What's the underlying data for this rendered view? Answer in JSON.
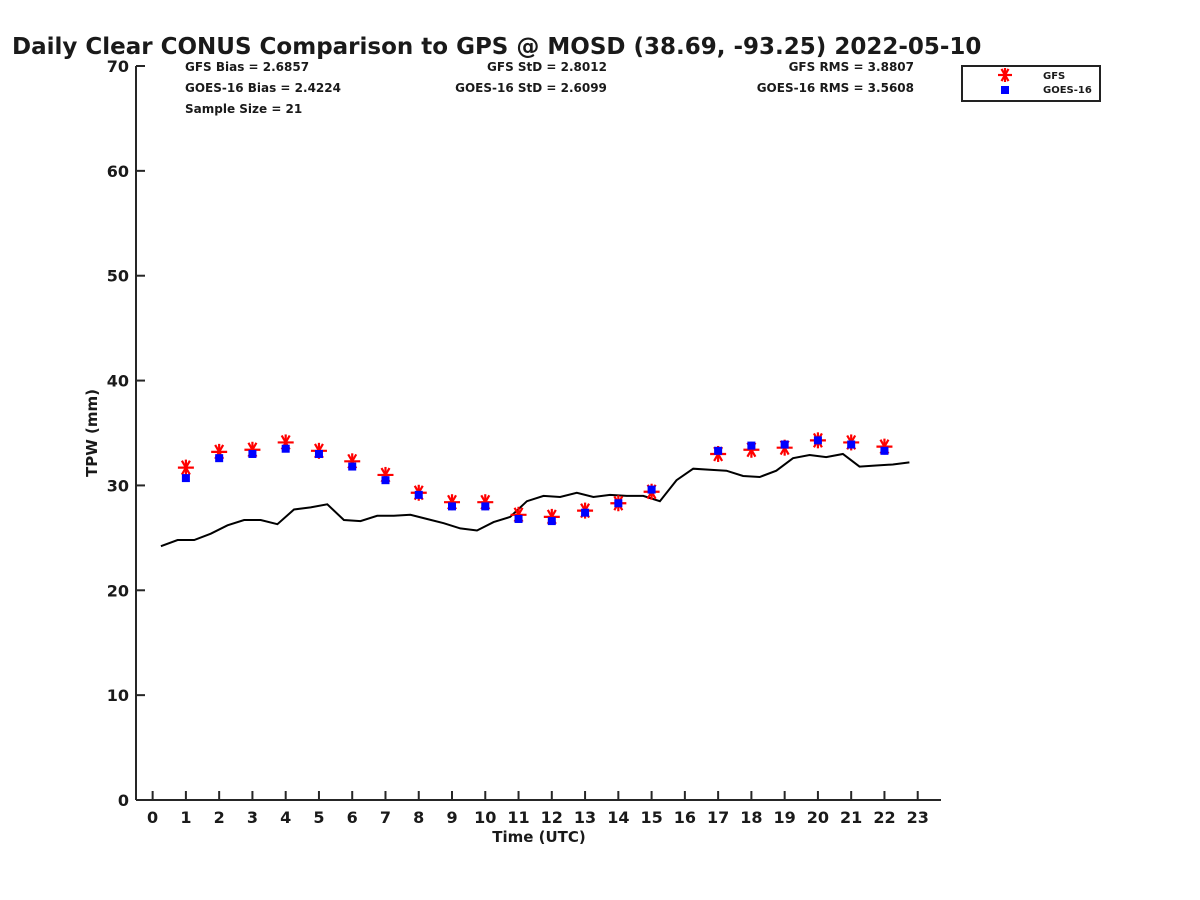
{
  "chart_data": {
    "type": "scatter",
    "title": "Daily Clear CONUS Comparison to GPS @ MOSD (38.69, -93.25) 2022-05-10",
    "xlabel": "Time (UTC)",
    "ylabel": "TPW (mm)",
    "xlim": [
      -0.5,
      23.7
    ],
    "ylim": [
      0,
      70
    ],
    "x_ticks": [
      0,
      1,
      2,
      3,
      4,
      5,
      6,
      7,
      8,
      9,
      10,
      11,
      12,
      13,
      14,
      15,
      16,
      17,
      18,
      19,
      20,
      21,
      22,
      23
    ],
    "y_ticks": [
      0,
      10,
      20,
      30,
      40,
      50,
      60,
      70
    ],
    "grid": false,
    "legend_position": "top-right",
    "stats": {
      "gfs_bias": "GFS Bias = 2.6857",
      "goes_bias": "GOES-16 Bias = 2.4224",
      "sample_size": "Sample Size = 21",
      "gfs_std": "GFS StD = 2.8012",
      "goes_std": "GOES-16 StD = 2.6099",
      "gfs_rms": "GFS RMS = 3.8807",
      "goes_rms": "GOES-16 RMS = 3.5608"
    },
    "series": [
      {
        "name": "GFS",
        "marker": "asterisk",
        "color": "#ff0000",
        "x": [
          1,
          2,
          3,
          4,
          5,
          6,
          7,
          8,
          9,
          10,
          11,
          12,
          13,
          14,
          15,
          17,
          18,
          19,
          20,
          21,
          22
        ],
        "y": [
          31.7,
          33.2,
          33.4,
          34.1,
          33.3,
          32.3,
          31.0,
          29.3,
          28.4,
          28.4,
          27.2,
          27.0,
          27.6,
          28.3,
          29.4,
          33.0,
          33.4,
          33.6,
          34.3,
          34.1,
          33.7
        ]
      },
      {
        "name": "GOES-16",
        "marker": "square",
        "color": "#0000ff",
        "x": [
          1,
          2,
          3,
          4,
          5,
          6,
          7,
          8,
          9,
          10,
          11,
          12,
          13,
          14,
          15,
          17,
          18,
          19,
          20,
          21,
          22
        ],
        "y": [
          30.7,
          32.6,
          33.0,
          33.5,
          33.0,
          31.8,
          30.5,
          29.1,
          28.0,
          28.0,
          26.8,
          26.6,
          27.4,
          28.3,
          29.6,
          33.3,
          33.8,
          33.9,
          34.3,
          33.9,
          33.3
        ]
      },
      {
        "name": "GPS",
        "type": "line",
        "color": "#000000",
        "x": [
          0.25,
          0.75,
          1.25,
          1.75,
          2.25,
          2.75,
          3.25,
          3.75,
          4.25,
          4.75,
          5.25,
          5.75,
          6.25,
          6.75,
          7.25,
          7.75,
          8.25,
          8.75,
          9.25,
          9.75,
          10.25,
          10.75,
          11.25,
          11.75,
          12.25,
          12.75,
          13.25,
          13.75,
          14.25,
          14.75,
          15.25,
          15.75,
          16.25,
          16.75,
          17.25,
          17.75,
          18.25,
          18.75,
          19.25,
          19.75,
          20.25,
          20.75,
          21.25,
          21.75,
          22.25,
          22.75
        ],
        "y": [
          24.2,
          24.8,
          24.8,
          25.4,
          26.2,
          26.7,
          26.7,
          26.3,
          27.7,
          27.9,
          28.2,
          26.7,
          26.6,
          27.1,
          27.1,
          27.2,
          26.8,
          26.4,
          25.9,
          25.7,
          26.5,
          27.0,
          28.5,
          29.0,
          28.9,
          29.3,
          28.9,
          29.1,
          29.0,
          29.0,
          28.5,
          30.5,
          31.6,
          31.5,
          31.4,
          30.9,
          30.8,
          31.4,
          32.6,
          32.9,
          32.7,
          33.0,
          31.8,
          31.9,
          32.0,
          32.2
        ]
      }
    ]
  }
}
